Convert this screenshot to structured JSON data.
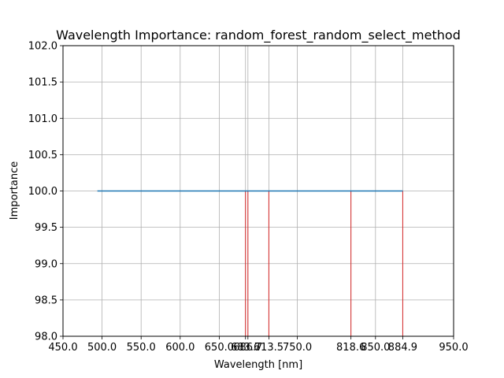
{
  "chart_data": {
    "type": "line",
    "title": "Wavelength Importance: random_forest_random_select_method",
    "xlabel": "Wavelength [nm]",
    "ylabel": "Importance",
    "xlim": [
      450.0,
      950.0
    ],
    "ylim": [
      98.0,
      102.0
    ],
    "grid": true,
    "x_ticks": [
      450.0,
      500.0,
      550.0,
      600.0,
      650.0,
      683.6,
      686.7,
      713.5,
      750.0,
      818.6,
      850.0,
      884.9,
      950.0
    ],
    "x_tick_labels": [
      "450.0",
      "500.0",
      "550.0",
      "600.0",
      "650.0",
      "683.6",
      "686.7",
      "713.5",
      "750.0",
      "818.6",
      "850.0",
      "884.9",
      "950.0"
    ],
    "y_ticks": [
      98.0,
      98.5,
      99.0,
      99.5,
      100.0,
      100.5,
      101.0,
      101.5,
      102.0
    ],
    "y_tick_labels": [
      "98.0",
      "98.5",
      "99.0",
      "99.5",
      "100.0",
      "100.5",
      "101.0",
      "101.5",
      "102.0"
    ],
    "series": [
      {
        "x": [
          494.0,
          884.9
        ],
        "y": [
          100.0,
          100.0
        ],
        "color": "#1f77b4"
      }
    ],
    "vlines": [
      {
        "x": 683.6,
        "color": "#d62728"
      },
      {
        "x": 686.7,
        "color": "#d62728"
      },
      {
        "x": 713.5,
        "color": "#d62728"
      },
      {
        "x": 818.6,
        "color": "#d62728"
      },
      {
        "x": 884.9,
        "color": "#d62728"
      }
    ]
  }
}
